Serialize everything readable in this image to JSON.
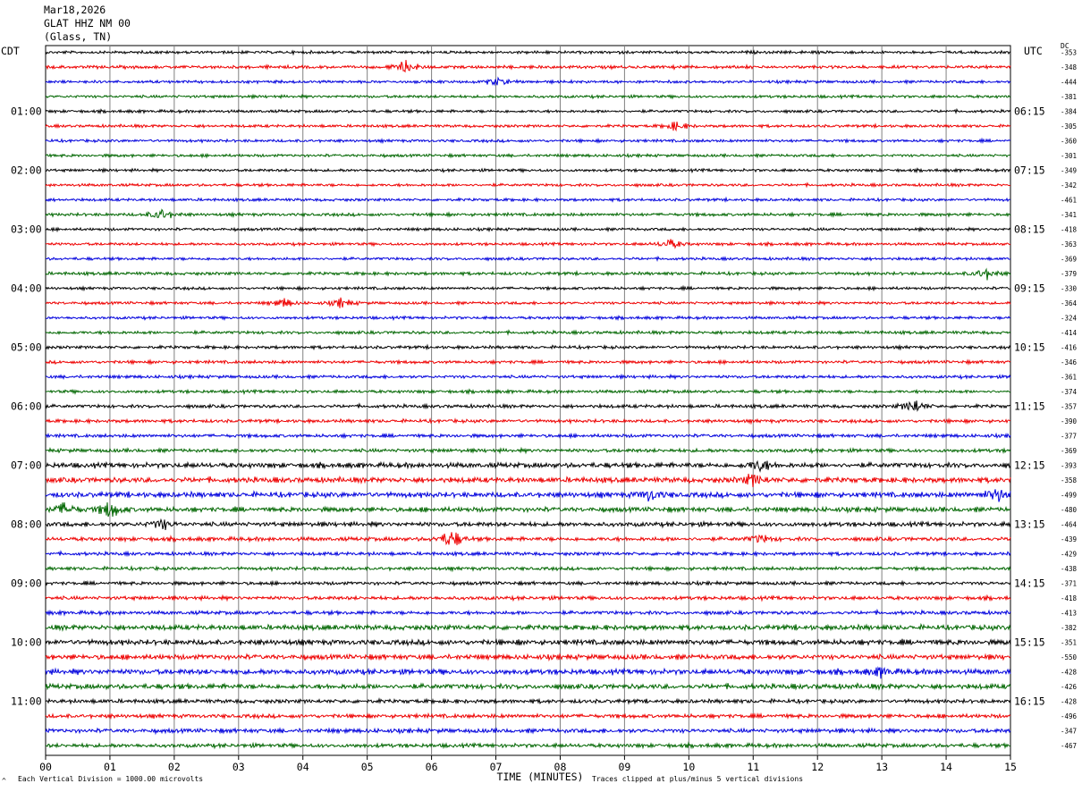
{
  "header": {
    "line1": "Mar18,2026",
    "line2": "GLAT HHZ NM 00",
    "line3": "(Glass, TN)"
  },
  "left_zone": "CDT",
  "right_zone": "UTC",
  "dc_label": "DC",
  "footer": {
    "scale_note": "Each Vertical Division = 1000.00 microvolts",
    "clip_note": "Traces clipped at plus/minus 5 vertical divisions",
    "corner_mark": "^"
  },
  "colors": {
    "trace_cycle": [
      "#000000",
      "#ee0000",
      "#0000dd",
      "#006600"
    ],
    "grid": "#808080"
  },
  "chart_data": {
    "type": "line",
    "title": "GLAT HHZ NM 00",
    "xlabel": "TIME (MINUTES)",
    "xlim": [
      0,
      15
    ],
    "x_ticks": [
      "00",
      "01",
      "02",
      "03",
      "04",
      "05",
      "06",
      "07",
      "08",
      "09",
      "10",
      "11",
      "12",
      "13",
      "14",
      "15"
    ],
    "traces_per_hour": 4,
    "minutes_per_trace": 15,
    "left_hour_labels": [
      "01:00",
      "02:00",
      "03:00",
      "04:00",
      "05:00",
      "06:00",
      "07:00",
      "08:00",
      "09:00",
      "10:00",
      "11:00"
    ],
    "right_hour_labels": [
      "06:15",
      "07:15",
      "08:15",
      "09:15",
      "10:15",
      "11:15",
      "12:15",
      "13:15",
      "14:15",
      "15:15",
      "16:15"
    ],
    "dc_offsets": [
      -353,
      -348,
      -444,
      -381,
      -384,
      -305,
      -360,
      -301,
      -349,
      -342,
      -461,
      -341,
      -418,
      -363,
      -369,
      -379,
      -330,
      -364,
      -324,
      -414,
      -416,
      -346,
      -361,
      -374,
      -357,
      -390,
      -377,
      -369,
      -393,
      -358,
      -499,
      -480,
      -464,
      -439,
      -429,
      -438,
      -371,
      -418,
      -413,
      -382,
      -351,
      -550,
      -428,
      -426,
      -428,
      -496,
      -347,
      -467
    ],
    "noise_level": [
      1.0,
      1.1,
      1.0,
      1.0,
      1.0,
      1.0,
      1.0,
      1.0,
      1.0,
      1.0,
      1.0,
      1.1,
      1.0,
      1.0,
      1.0,
      1.1,
      1.0,
      1.0,
      1.0,
      1.1,
      1.1,
      1.1,
      1.1,
      1.1,
      1.2,
      1.2,
      1.2,
      1.3,
      1.8,
      1.9,
      1.9,
      1.7,
      1.6,
      1.4,
      1.2,
      1.2,
      1.2,
      1.3,
      1.3,
      1.8,
      1.9,
      1.8,
      1.9,
      1.8,
      1.4,
      1.4,
      1.5,
      1.4
    ],
    "events": [
      {
        "trace": 1,
        "minute": 5.6,
        "amplitude": 6
      },
      {
        "trace": 2,
        "minute": 7.0,
        "amplitude": 4
      },
      {
        "trace": 5,
        "minute": 9.8,
        "amplitude": 4
      },
      {
        "trace": 11,
        "minute": 1.8,
        "amplitude": 6
      },
      {
        "trace": 13,
        "minute": 9.7,
        "amplitude": 5
      },
      {
        "trace": 15,
        "minute": 14.6,
        "amplitude": 6
      },
      {
        "trace": 17,
        "minute": 3.7,
        "amplitude": 4
      },
      {
        "trace": 17,
        "minute": 4.6,
        "amplitude": 4
      },
      {
        "trace": 24,
        "minute": 13.5,
        "amplitude": 7
      },
      {
        "trace": 28,
        "minute": 11.1,
        "amplitude": 6
      },
      {
        "trace": 29,
        "minute": 11.0,
        "amplitude": 6
      },
      {
        "trace": 30,
        "minute": 9.4,
        "amplitude": 6
      },
      {
        "trace": 30,
        "minute": 14.8,
        "amplitude": 8
      },
      {
        "trace": 31,
        "minute": 0.3,
        "amplitude": 7
      },
      {
        "trace": 31,
        "minute": 1.0,
        "amplitude": 8
      },
      {
        "trace": 32,
        "minute": 1.8,
        "amplitude": 5
      },
      {
        "trace": 33,
        "minute": 6.3,
        "amplitude": 9
      },
      {
        "trace": 33,
        "minute": 11.1,
        "amplitude": 4
      },
      {
        "trace": 42,
        "minute": 13.0,
        "amplitude": 4
      }
    ]
  }
}
